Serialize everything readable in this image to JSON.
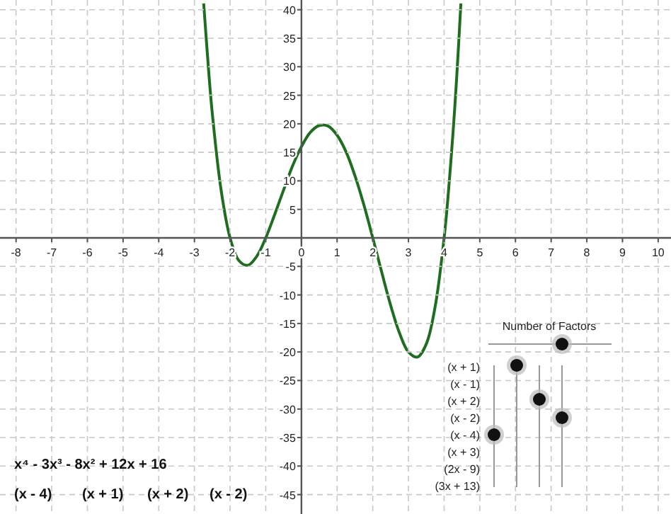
{
  "chart_data": {
    "type": "line",
    "x": [
      -2.74,
      -2.6,
      -2.5,
      -2.25,
      -2,
      -1.75,
      -1.5,
      -1.25,
      -1,
      -0.75,
      -0.5,
      -0.25,
      0,
      0.25,
      0.5,
      0.75,
      1,
      1.25,
      1.5,
      1.75,
      2,
      2.25,
      2.5,
      2.75,
      3,
      3.25,
      3.5,
      3.75,
      4,
      4.1,
      4.25,
      4.35,
      4.47
    ],
    "series": [
      {
        "color": "#1f6e1f",
        "values": [
          41.1,
          29.2,
          21.9,
          8.3,
          0,
          -4,
          -4.8,
          -3.2,
          0,
          4.1,
          8.4,
          12.6,
          16,
          18.5,
          19.7,
          19.6,
          18,
          15.1,
          10.9,
          5.8,
          0,
          -6,
          -11.8,
          -16.7,
          -20,
          -20.9,
          -18.6,
          -12,
          0,
          6.5,
          18.5,
          27.9,
          41.1
        ]
      }
    ],
    "xlim": [
      -8.45,
      10.36
    ],
    "ylim": [
      -48.4,
      41.7
    ],
    "xticks": [
      -8,
      -7,
      -6,
      -5,
      -4,
      -3,
      -2,
      -1,
      0,
      1,
      2,
      3,
      4,
      5,
      6,
      7,
      8,
      9,
      10
    ],
    "yticks": [
      -45,
      -40,
      -35,
      -30,
      -25,
      -20,
      -15,
      -10,
      -5,
      5,
      10,
      15,
      20,
      25,
      30,
      35,
      40
    ],
    "grid": true,
    "marker": "none",
    "line_style": "solid",
    "annotations": [
      "Number of Factors",
      "(x + 1)",
      "(x - 1)",
      "(x + 2)",
      "(x - 2)",
      "(x - 4)",
      "(x + 3)",
      "(2x - 9)",
      "(3x + 13)",
      "x⁴ - 3x³ - 8x² + 12x + 16",
      "(x - 4)",
      "(x + 1)",
      "(x + 2)",
      "(x - 2)"
    ]
  }
}
